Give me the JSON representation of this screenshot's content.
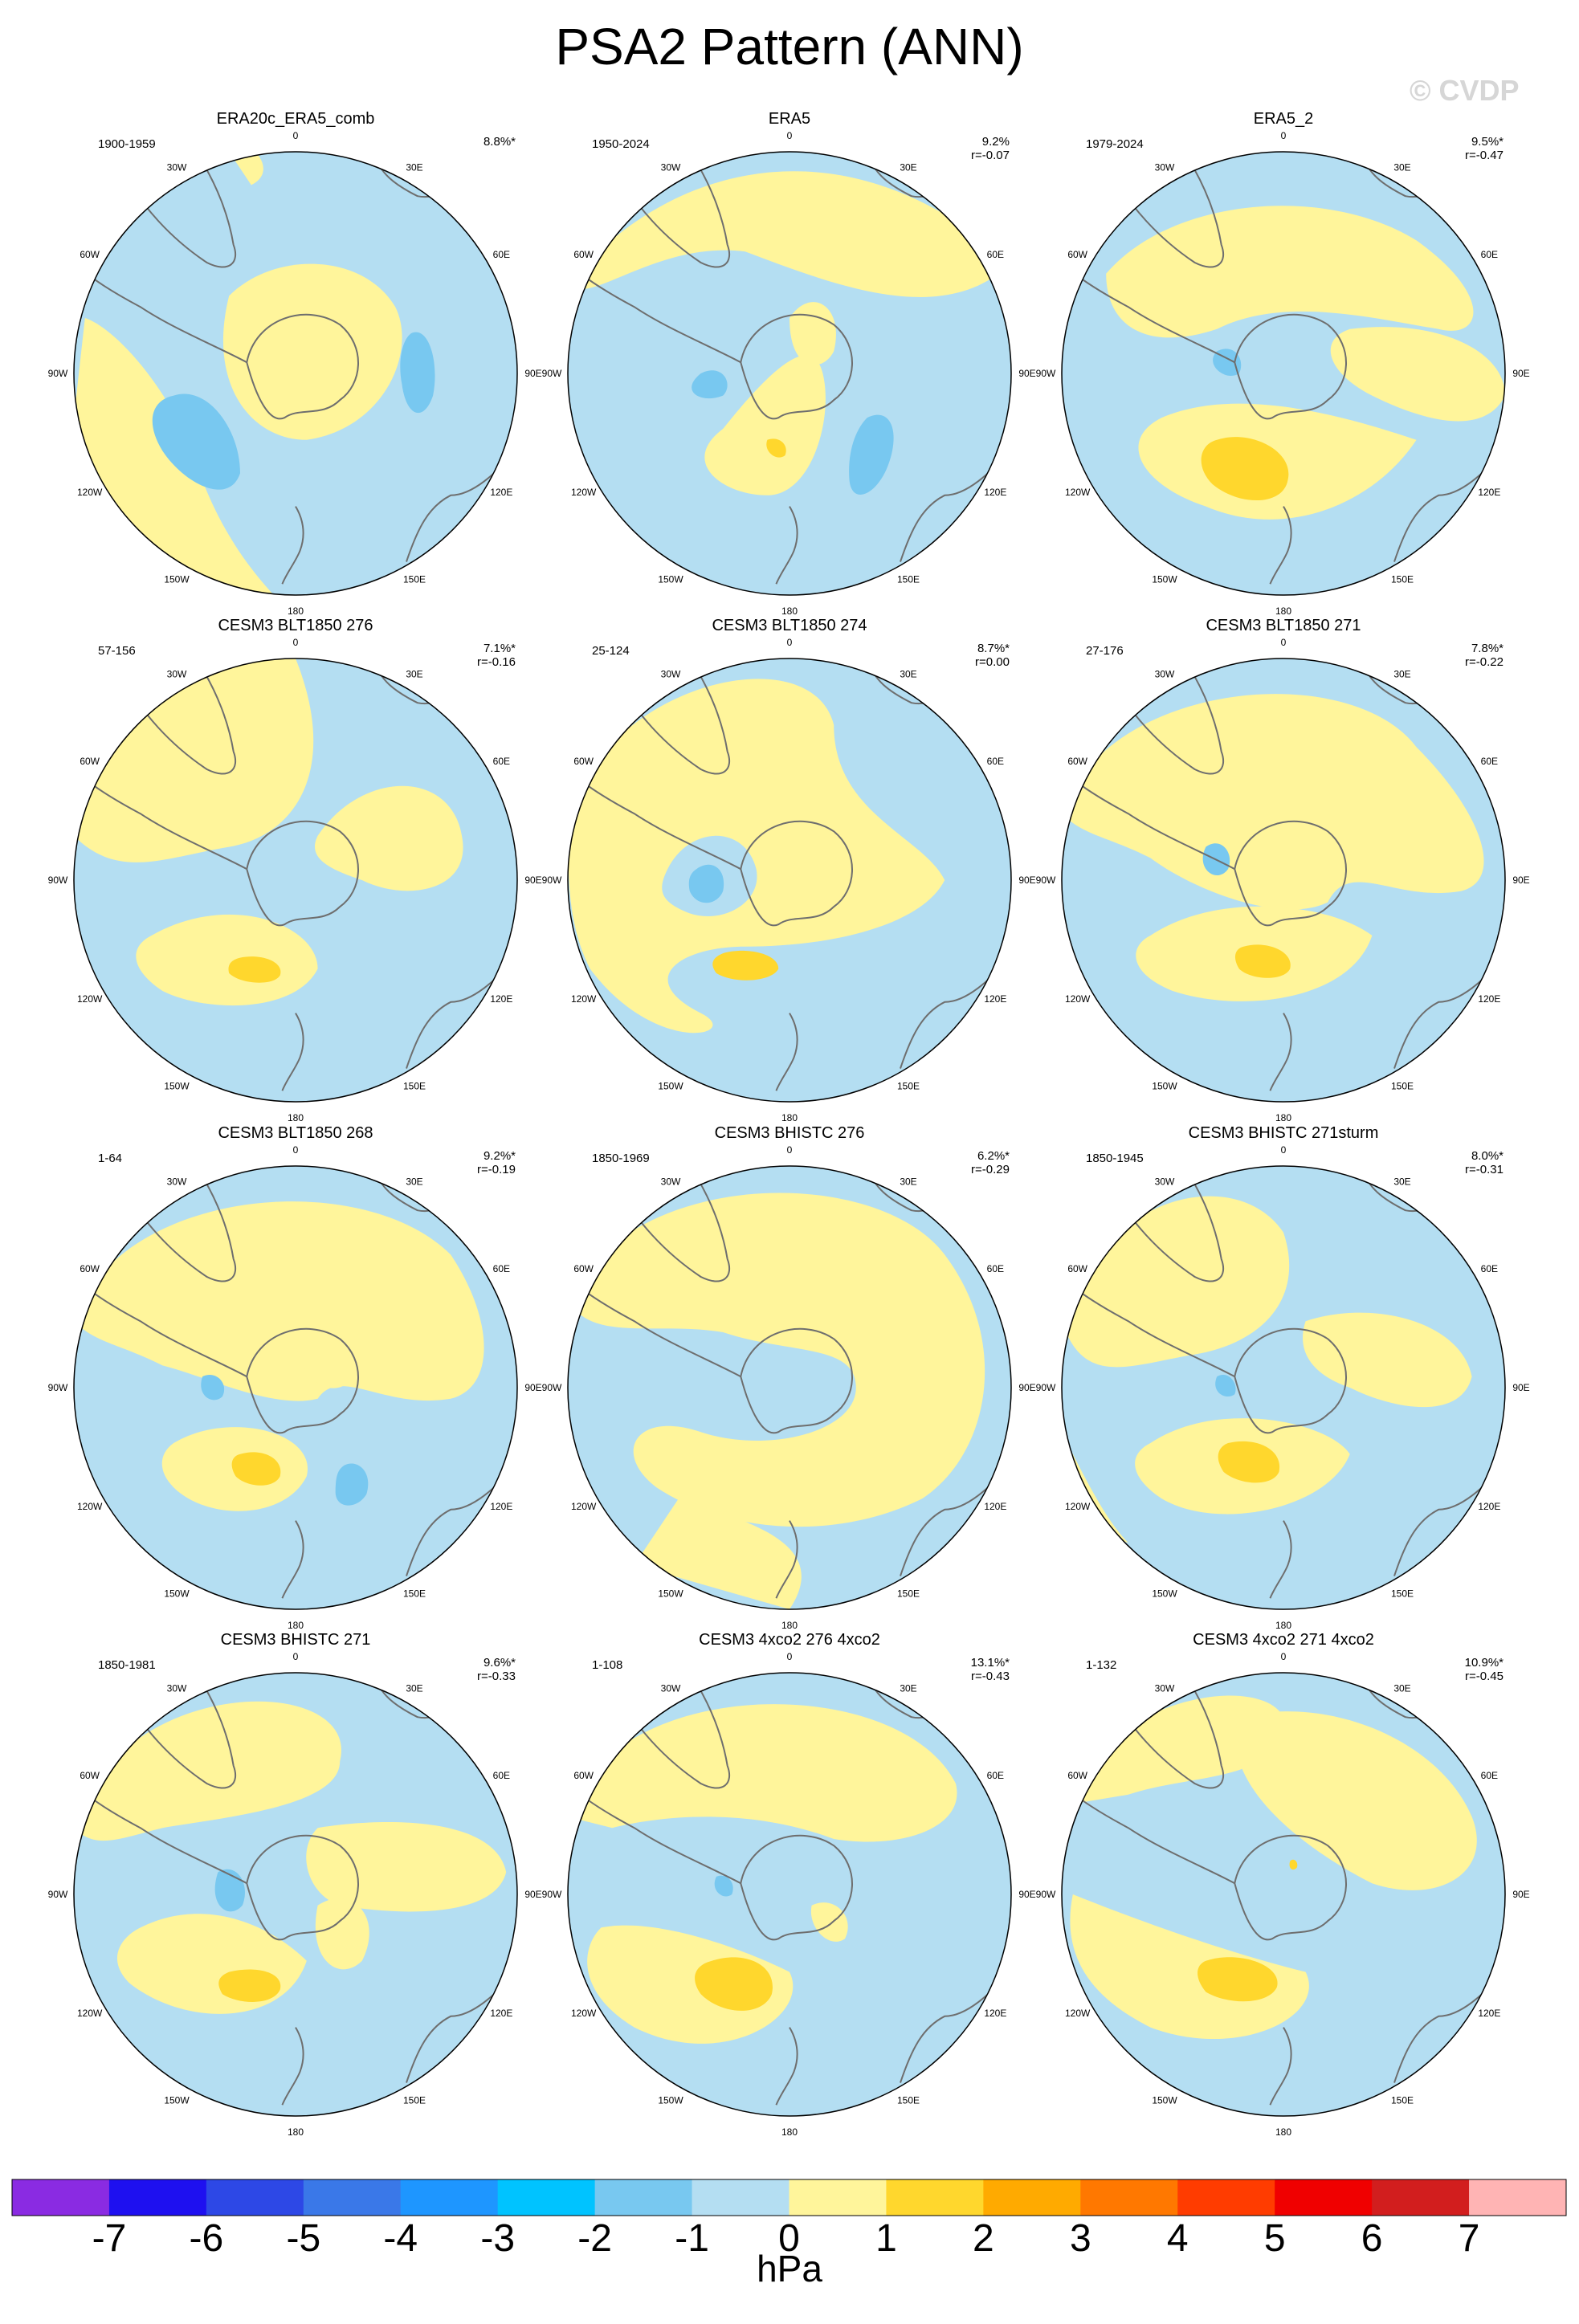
{
  "title": "PSA2 Pattern (ANN)",
  "watermark": "© CVDP",
  "unit": "hPa",
  "longitude_labels": [
    "0",
    "30E",
    "60E",
    "90E",
    "120E",
    "150E",
    "180",
    "150W",
    "120W",
    "90W",
    "60W",
    "30W"
  ],
  "colorbar": {
    "labels": [
      "-7",
      "-6",
      "-5",
      "-4",
      "-3",
      "-2",
      "-1",
      "0",
      "1",
      "2",
      "3",
      "4",
      "5",
      "6",
      "7"
    ],
    "colors": [
      "#8a2be2",
      "#1e10f0",
      "#2d48e6",
      "#3a78e8",
      "#1e96ff",
      "#00c3ff",
      "#78c8f0",
      "#b4def2",
      "#fff59b",
      "#ffd72d",
      "#ffaa00",
      "#ff7800",
      "#ff3c00",
      "#f00000",
      "#d21e1e",
      "#ffb4b4"
    ]
  },
  "panels": [
    {
      "title": "ERA20c_ERA5_comb",
      "period": "1900-1959",
      "stat1": "8.8%*",
      "stat2": ""
    },
    {
      "title": "ERA5",
      "period": "1950-2024",
      "stat1": "9.2%",
      "stat2": "r=-0.07"
    },
    {
      "title": "ERA5_2",
      "period": "1979-2024",
      "stat1": "9.5%*",
      "stat2": "r=-0.47"
    },
    {
      "title": "CESM3 BLT1850 276",
      "period": "57-156",
      "stat1": "7.1%*",
      "stat2": "r=-0.16"
    },
    {
      "title": "CESM3 BLT1850 274",
      "period": "25-124",
      "stat1": "8.7%*",
      "stat2": "r=0.00"
    },
    {
      "title": "CESM3 BLT1850 271",
      "period": "27-176",
      "stat1": "7.8%*",
      "stat2": "r=-0.22"
    },
    {
      "title": "CESM3 BLT1850 268",
      "period": "1-64",
      "stat1": "9.2%*",
      "stat2": "r=-0.19"
    },
    {
      "title": "CESM3 BHISTC 276",
      "period": "1850-1969",
      "stat1": "6.2%*",
      "stat2": "r=-0.29"
    },
    {
      "title": "CESM3 BHISTC 271sturm",
      "period": "1850-1945",
      "stat1": "8.0%*",
      "stat2": "r=-0.31"
    },
    {
      "title": "CESM3 BHISTC 271",
      "period": "1850-1981",
      "stat1": "9.6%*",
      "stat2": "r=-0.33"
    },
    {
      "title": "CESM3 4xco2 276 4xco2",
      "period": "1-108",
      "stat1": "13.1%*",
      "stat2": "r=-0.43"
    },
    {
      "title": "CESM3 4xco2 271 4xco2",
      "period": "1-132",
      "stat1": "10.9%*",
      "stat2": "r=-0.45"
    }
  ]
}
